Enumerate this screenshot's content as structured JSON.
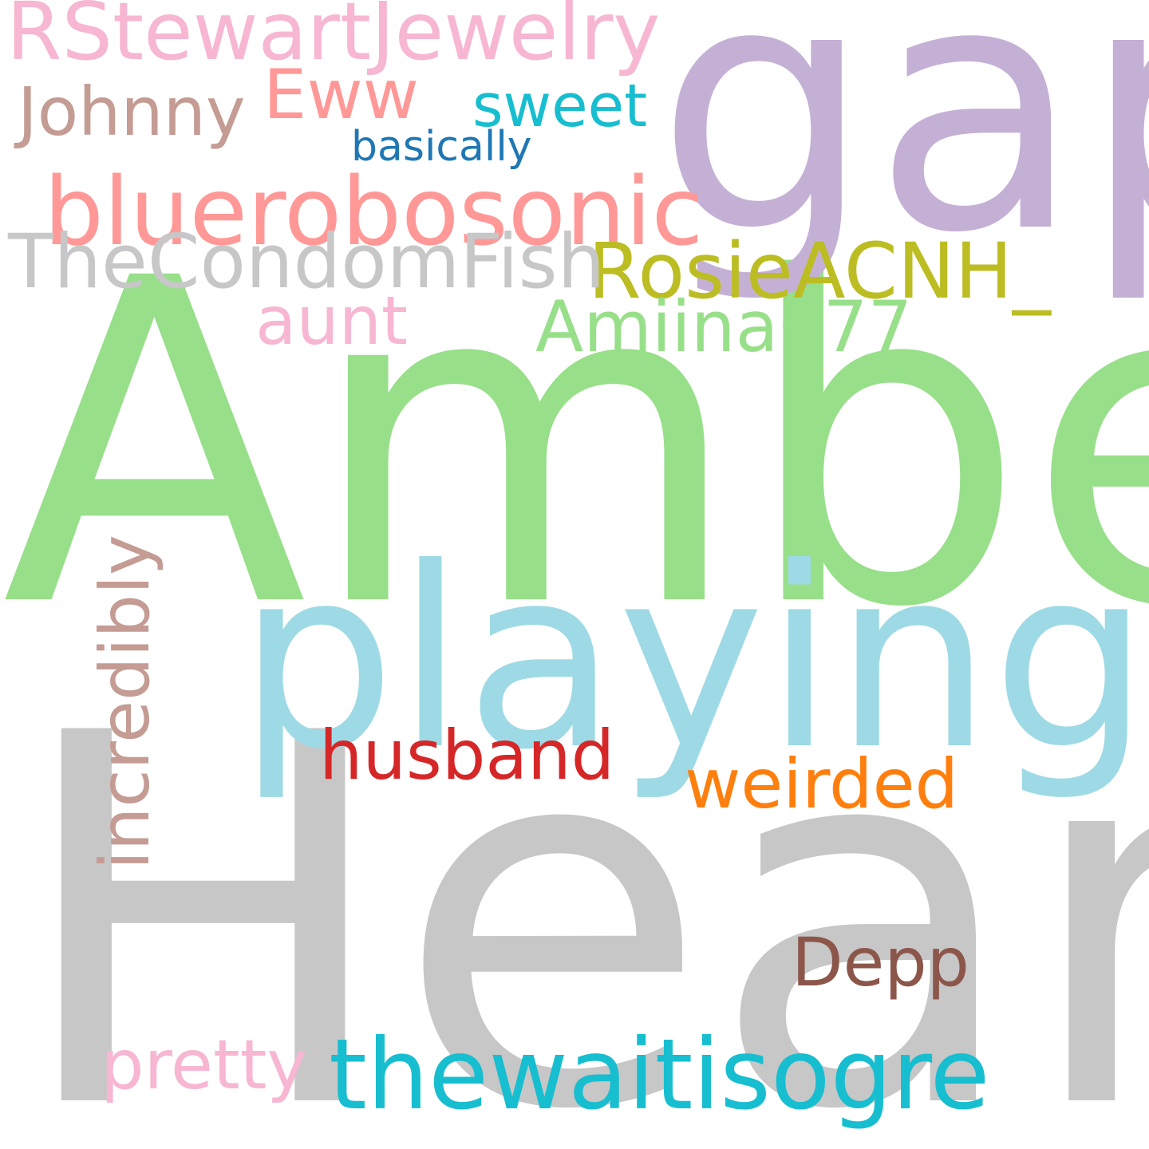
{
  "words": {
    "heard": {
      "text": "Heard",
      "color": "#c7c7c7"
    },
    "amber": {
      "text": "Amber",
      "color": "#98df8a"
    },
    "gap": {
      "text": "gap",
      "color": "#c5b0d5"
    },
    "playing": {
      "text": "playing",
      "color": "#9edae5"
    },
    "thewaitisogre": {
      "text": "thewaitisogre",
      "color": "#17becf"
    },
    "bluerobosonic": {
      "text": "bluerobosonic",
      "color": "#ff9896"
    },
    "rstewartjewelry": {
      "text": "RStewartJewelry",
      "color": "#f7b6d2"
    },
    "rosieacnh": {
      "text": "RosieACNH_",
      "color": "#bcbd22"
    },
    "thecondomfish": {
      "text": "TheCondomFish",
      "color": "#c7c7c7"
    },
    "amiina077": {
      "text": "Amiina077",
      "color": "#98df8a"
    },
    "eww": {
      "text": "Eww",
      "color": "#ff9896"
    },
    "weirded": {
      "text": "weirded",
      "color": "#ff7f0e"
    },
    "husband": {
      "text": "husband",
      "color": "#d62728"
    },
    "pretty": {
      "text": "pretty",
      "color": "#f7b6d2"
    },
    "johnny": {
      "text": "Johnny",
      "color": "#c49c94"
    },
    "depp": {
      "text": "Depp",
      "color": "#8c564b"
    },
    "aunt": {
      "text": "aunt",
      "color": "#f7b6d2"
    },
    "sweet": {
      "text": "sweet",
      "color": "#17becf"
    },
    "basically": {
      "text": "basically",
      "color": "#1f77b4"
    },
    "incredibly": {
      "text": "incredibly",
      "color": "#c49c94"
    }
  }
}
